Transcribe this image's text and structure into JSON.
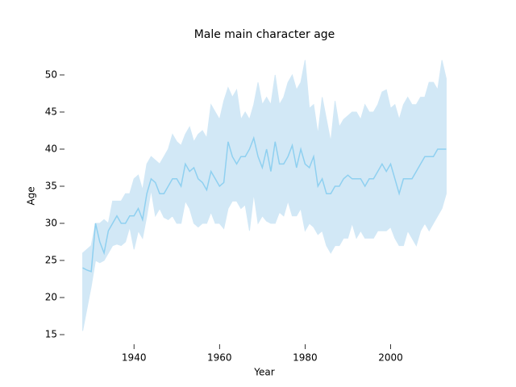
{
  "chart_data": {
    "type": "line_band",
    "title": "Male main character age",
    "xlabel": "Year",
    "ylabel": "Age",
    "color": "#8fd0f0",
    "band_color": "#d2e8f6",
    "xlim": [
      1923.75,
      2017.25
    ],
    "ylim": [
      13.7,
      53.8
    ],
    "xticks": [
      1940,
      1960,
      1980,
      2000
    ],
    "yticks": [
      15,
      20,
      25,
      30,
      35,
      40,
      45,
      50
    ],
    "x": [
      1928,
      1929,
      1930,
      1931,
      1932,
      1933,
      1934,
      1935,
      1936,
      1937,
      1938,
      1939,
      1940,
      1941,
      1942,
      1943,
      1944,
      1945,
      1946,
      1947,
      1948,
      1949,
      1950,
      1951,
      1952,
      1953,
      1954,
      1955,
      1956,
      1957,
      1958,
      1959,
      1960,
      1961,
      1962,
      1963,
      1964,
      1965,
      1966,
      1967,
      1968,
      1969,
      1970,
      1971,
      1972,
      1973,
      1974,
      1975,
      1976,
      1977,
      1978,
      1979,
      1980,
      1981,
      1982,
      1983,
      1984,
      1985,
      1986,
      1987,
      1988,
      1989,
      1990,
      1991,
      1992,
      1993,
      1994,
      1995,
      1996,
      1997,
      1998,
      1999,
      2000,
      2001,
      2002,
      2003,
      2004,
      2005,
      2006,
      2007,
      2008,
      2009,
      2010,
      2011,
      2012,
      2013
    ],
    "values": [
      24,
      23.7,
      23.5,
      30,
      27.5,
      26,
      29,
      30,
      31,
      30,
      30,
      31,
      31,
      32,
      30.5,
      34,
      36,
      35.5,
      34,
      34,
      35,
      36,
      36,
      35,
      38,
      37,
      37.5,
      36,
      35.5,
      34.5,
      37,
      36,
      35,
      35.5,
      41,
      39,
      38,
      39,
      39,
      40,
      41.5,
      39,
      37.5,
      40,
      37,
      41,
      38,
      38,
      39,
      40.5,
      37.5,
      40,
      38,
      37.5,
      39,
      35,
      36,
      34,
      34,
      35,
      35,
      36,
      36.5,
      36,
      36,
      36,
      35,
      36,
      36,
      37,
      38,
      37,
      38,
      36,
      34,
      36,
      36,
      36,
      37,
      38,
      39,
      39,
      39,
      40,
      40,
      40
    ],
    "upper": [
      26,
      26.5,
      27,
      30,
      30,
      30.5,
      30,
      33,
      33,
      33,
      34,
      34,
      36,
      36.5,
      34.5,
      38,
      39,
      38.5,
      38,
      39,
      40,
      42,
      41,
      40.5,
      42,
      43,
      41,
      42,
      42.5,
      41.5,
      46,
      45,
      44,
      46.5,
      48.3,
      47,
      48,
      44,
      45,
      44,
      46,
      49,
      46,
      47,
      46,
      50,
      46,
      47,
      49,
      50,
      48,
      49,
      52,
      45.5,
      46,
      42,
      47,
      44,
      41,
      46.5,
      43,
      44,
      44.5,
      45,
      45,
      44,
      46,
      45,
      45,
      46,
      47.7,
      48,
      45.5,
      46,
      44,
      46,
      47,
      46,
      46,
      47,
      47,
      49,
      49,
      48,
      52,
      49.5
    ],
    "lower": [
      15.5,
      18.5,
      21.5,
      25,
      24.7,
      25,
      26,
      27,
      27.2,
      27,
      27.5,
      29.5,
      26.5,
      29,
      28,
      31,
      34.5,
      31,
      32,
      30.8,
      30.5,
      31,
      30,
      30,
      33,
      32,
      30,
      29.5,
      30,
      30,
      31.5,
      30,
      30,
      29.3,
      32,
      33,
      33,
      32,
      32.5,
      29,
      34,
      30,
      31,
      30.3,
      30,
      30,
      31.5,
      31,
      33,
      31,
      31,
      32,
      29,
      30,
      29.5,
      28.5,
      29,
      27,
      26,
      27,
      27,
      28,
      28,
      30,
      28,
      29,
      28,
      28,
      28,
      29,
      29,
      29,
      29.5,
      28,
      27,
      27,
      29,
      28,
      27,
      29,
      30,
      29,
      30,
      31,
      32,
      34
    ]
  }
}
